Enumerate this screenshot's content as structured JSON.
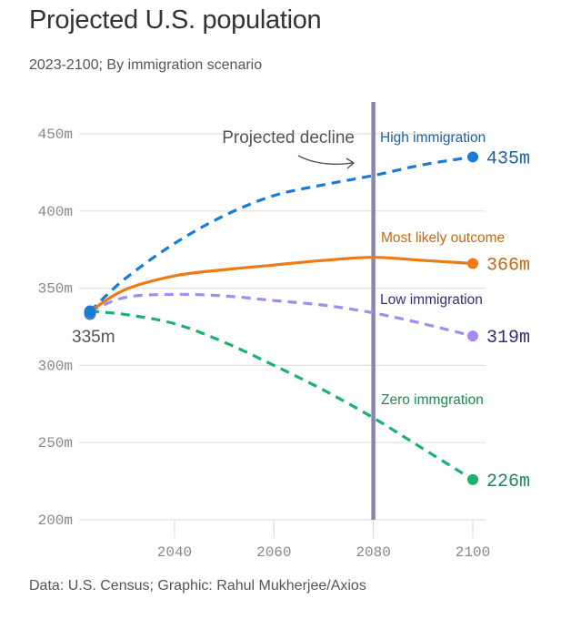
{
  "header": {
    "title": "Projected U.S. population",
    "subtitle": "2023-2100; By immigration scenario"
  },
  "footer": {
    "source": "Data: U.S. Census; Graphic: Rahul Mukherjee/Axios"
  },
  "chart_data": {
    "type": "line",
    "title": "Projected U.S. population",
    "subtitle": "2023-2100; By immigration scenario",
    "xlabel": "",
    "ylabel": "",
    "xlim": [
      2023,
      2102
    ],
    "ylim": [
      200,
      450
    ],
    "grid": true,
    "x_ticks": [
      2040,
      2060,
      2080,
      2100
    ],
    "x_tick_labels": [
      "2040",
      "2060",
      "2080",
      "2100"
    ],
    "y_ticks": [
      200,
      250,
      300,
      350,
      400,
      450
    ],
    "y_tick_labels": [
      "200m",
      "250m",
      "300m",
      "350m",
      "400m",
      "450m"
    ],
    "start": {
      "x": 2023,
      "value": 335,
      "label": "335m"
    },
    "annotation": {
      "x": 2080,
      "text": "Projected decline",
      "color": "#8a86a8"
    },
    "series": [
      {
        "name": "High immigration",
        "color": "#1a7bd6",
        "label_color": "#1f5fa8",
        "dashed": true,
        "end_label": "435m",
        "x": [
          2023,
          2030,
          2040,
          2050,
          2060,
          2070,
          2080,
          2090,
          2100
        ],
        "values": [
          335,
          356,
          379,
          397,
          410,
          417,
          423,
          430,
          435
        ]
      },
      {
        "name": "Most likely outcome",
        "color": "#ef7a14",
        "label_color": "#c46a12",
        "dashed": false,
        "end_label": "366m",
        "x": [
          2023,
          2030,
          2040,
          2050,
          2060,
          2070,
          2080,
          2090,
          2100
        ],
        "values": [
          335,
          349,
          358,
          362,
          365,
          368,
          370,
          368,
          366
        ]
      },
      {
        "name": "Low immigration",
        "color": "#a68af0",
        "label_color": "#3d2a7a",
        "dashed": true,
        "end_label": "319m",
        "x": [
          2023,
          2030,
          2040,
          2050,
          2060,
          2070,
          2080,
          2090,
          2100
        ],
        "values": [
          335,
          344,
          346,
          345,
          342,
          339,
          334,
          327,
          319
        ]
      },
      {
        "name": "Zero immgration",
        "color": "#19b36b",
        "label_color": "#1f8a55",
        "dashed": true,
        "end_label": "226m",
        "x": [
          2023,
          2030,
          2040,
          2050,
          2060,
          2070,
          2080,
          2090,
          2100
        ],
        "values": [
          335,
          333,
          327,
          315,
          300,
          284,
          266,
          246,
          226
        ]
      }
    ]
  }
}
